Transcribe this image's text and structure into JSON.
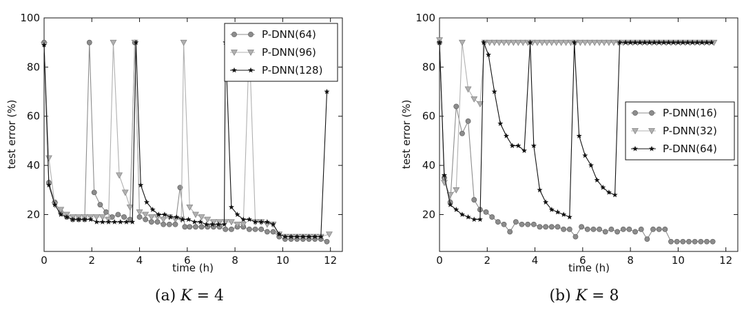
{
  "chart_data": [
    {
      "type": "line",
      "caption_prefix": "(a) ",
      "caption_var": "K",
      "caption_rest": " = 4",
      "xlabel": "time (h)",
      "ylabel": "test error (%)",
      "xlim": [
        0,
        12.5
      ],
      "ylim": [
        5,
        100
      ],
      "xticks": [
        0,
        2,
        4,
        6,
        8,
        10,
        12
      ],
      "yticks": [
        20,
        40,
        60,
        80,
        100
      ],
      "grid": false,
      "legend_position": "top-right",
      "series": [
        {
          "name": "P-DNN(64)",
          "color": "#8c8c8c",
          "marker": "circle",
          "x": [
            0,
            0.2,
            0.45,
            0.7,
            0.95,
            1.2,
            1.45,
            1.7,
            1.9,
            2.1,
            2.35,
            2.6,
            2.85,
            3.1,
            3.35,
            3.6,
            3.8,
            4.0,
            4.25,
            4.5,
            4.75,
            5.0,
            5.25,
            5.5,
            5.7,
            5.9,
            6.1,
            6.35,
            6.6,
            6.85,
            7.1,
            7.35,
            7.6,
            7.85,
            8.1,
            8.35,
            8.6,
            8.85,
            9.1,
            9.35,
            9.6,
            9.85,
            10.1,
            10.35,
            10.6,
            10.85,
            11.1,
            11.35,
            11.6,
            11.85
          ],
          "y": [
            90,
            33,
            25,
            21,
            19,
            18,
            18,
            18,
            90,
            29,
            24,
            21,
            19,
            20,
            19,
            18,
            90,
            19,
            18,
            17,
            17,
            16,
            16,
            16,
            31,
            15,
            15,
            15,
            15,
            15,
            15,
            15,
            14,
            14,
            15,
            15,
            14,
            14,
            14,
            13,
            13,
            11,
            10,
            10,
            10,
            10,
            10,
            10,
            10,
            9
          ]
        },
        {
          "name": "P-DNN(96)",
          "color": "#b0b0b0",
          "marker": "triangle-down",
          "x": [
            0,
            0.2,
            0.45,
            0.7,
            0.95,
            1.2,
            1.45,
            1.7,
            1.95,
            2.2,
            2.45,
            2.7,
            2.9,
            3.15,
            3.4,
            3.6,
            3.8,
            4.0,
            4.25,
            4.5,
            4.75,
            5.0,
            5.25,
            5.5,
            5.75,
            5.85,
            6.1,
            6.35,
            6.6,
            6.85,
            7.1,
            7.35,
            7.6,
            7.85,
            8.1,
            8.35,
            8.6,
            8.85,
            9.1,
            9.35,
            9.6,
            9.85,
            10.1,
            10.35,
            10.6,
            10.85,
            11.1,
            11.35,
            11.6,
            11.95
          ],
          "y": [
            89,
            43,
            24,
            22,
            20,
            19,
            19,
            19,
            19,
            19,
            19,
            18,
            90,
            36,
            29,
            23,
            90,
            21,
            20,
            19,
            19,
            18,
            19,
            18,
            18,
            90,
            23,
            20,
            19,
            18,
            17,
            17,
            17,
            17,
            16,
            16,
            90,
            17,
            17,
            16,
            16,
            12,
            11,
            11,
            11,
            11,
            11,
            11,
            11,
            12
          ]
        },
        {
          "name": "P-DNN(128)",
          "color": "#111111",
          "marker": "star",
          "x": [
            0,
            0.2,
            0.45,
            0.7,
            0.95,
            1.2,
            1.45,
            1.7,
            1.95,
            2.2,
            2.45,
            2.7,
            2.95,
            3.2,
            3.45,
            3.7,
            3.85,
            4.05,
            4.3,
            4.55,
            4.8,
            5.05,
            5.3,
            5.55,
            5.8,
            6.05,
            6.3,
            6.55,
            6.8,
            7.05,
            7.3,
            7.55,
            7.6,
            7.85,
            8.1,
            8.35,
            8.6,
            8.85,
            9.1,
            9.35,
            9.6,
            9.85,
            10.1,
            10.35,
            10.6,
            10.85,
            11.1,
            11.35,
            11.6,
            11.85
          ],
          "y": [
            89,
            32,
            24,
            20,
            19,
            18,
            18,
            18,
            18,
            17,
            17,
            17,
            17,
            17,
            17,
            17,
            90,
            32,
            25,
            22,
            20,
            20,
            19,
            19,
            18,
            18,
            17,
            17,
            16,
            16,
            16,
            16,
            90,
            23,
            20,
            18,
            18,
            17,
            17,
            17,
            16,
            12,
            11,
            11,
            11,
            11,
            11,
            11,
            11,
            70
          ]
        }
      ]
    },
    {
      "type": "line",
      "caption_prefix": "(b) ",
      "caption_var": "K",
      "caption_rest": " = 8",
      "xlabel": "time (h)",
      "ylabel": "test error (%)",
      "xlim": [
        0,
        12.5
      ],
      "ylim": [
        5,
        100
      ],
      "xticks": [
        0,
        2,
        4,
        6,
        8,
        10,
        12
      ],
      "yticks": [
        20,
        40,
        60,
        80,
        100
      ],
      "grid": false,
      "legend_position": "center-right",
      "series": [
        {
          "name": "P-DNN(16)",
          "color": "#8c8c8c",
          "marker": "circle",
          "x": [
            0,
            0.2,
            0.45,
            0.7,
            0.95,
            1.2,
            1.45,
            1.7,
            1.95,
            2.2,
            2.45,
            2.7,
            2.95,
            3.2,
            3.45,
            3.7,
            3.95,
            4.2,
            4.45,
            4.7,
            4.95,
            5.2,
            5.45,
            5.7,
            5.95,
            6.2,
            6.45,
            6.7,
            6.95,
            7.2,
            7.45,
            7.7,
            7.95,
            8.2,
            8.45,
            8.7,
            8.95,
            9.2,
            9.45,
            9.7,
            9.95,
            10.2,
            10.45,
            10.7,
            10.95,
            11.2,
            11.45
          ],
          "y": [
            90,
            35,
            25,
            64,
            53,
            58,
            26,
            22,
            21,
            19,
            17,
            16,
            13,
            17,
            16,
            16,
            16,
            15,
            15,
            15,
            15,
            14,
            14,
            11,
            15,
            14,
            14,
            14,
            13,
            14,
            13,
            14,
            14,
            13,
            14,
            10,
            14,
            14,
            14,
            9,
            9,
            9,
            9,
            9,
            9,
            9,
            9
          ]
        },
        {
          "name": "P-DNN(32)",
          "color": "#b0b0b0",
          "marker": "triangle-down",
          "x": [
            0,
            0.2,
            0.45,
            0.7,
            0.95,
            1.2,
            1.45,
            1.7,
            1.9,
            2.1,
            2.3,
            2.5,
            2.7,
            2.9,
            3.1,
            3.3,
            3.5,
            3.7,
            3.9,
            4.1,
            4.3,
            4.5,
            4.7,
            4.9,
            5.1,
            5.3,
            5.5,
            5.7,
            5.9,
            6.1,
            6.3,
            6.5,
            6.7,
            6.9,
            7.1,
            7.3,
            7.5,
            7.7,
            7.9,
            8.1,
            8.3,
            8.5,
            8.7,
            8.9,
            9.1,
            9.3,
            9.5,
            9.7,
            9.9,
            10.1,
            10.3,
            10.5,
            10.7,
            10.9,
            11.1,
            11.3,
            11.5
          ],
          "y": [
            91,
            33,
            28,
            30,
            90,
            71,
            67,
            65,
            90,
            90,
            90,
            90,
            90,
            90,
            90,
            90,
            90,
            90,
            90,
            90,
            90,
            90,
            90,
            90,
            90,
            90,
            90,
            90,
            90,
            90,
            90,
            90,
            90,
            90,
            90,
            90,
            90,
            90,
            90,
            90,
            90,
            90,
            90,
            90,
            90,
            90,
            90,
            90,
            90,
            90,
            90,
            90,
            90,
            90,
            90,
            90,
            90
          ]
        },
        {
          "name": "P-DNN(64)",
          "color": "#111111",
          "marker": "star",
          "x": [
            0,
            0.2,
            0.45,
            0.7,
            0.95,
            1.2,
            1.45,
            1.7,
            1.85,
            2.05,
            2.3,
            2.55,
            2.8,
            3.05,
            3.3,
            3.55,
            3.8,
            3.95,
            4.2,
            4.45,
            4.7,
            4.95,
            5.2,
            5.45,
            5.65,
            5.85,
            6.1,
            6.35,
            6.6,
            6.85,
            7.1,
            7.35,
            7.55,
            7.8,
            8.0,
            8.2,
            8.4,
            8.6,
            8.8,
            9.0,
            9.2,
            9.4,
            9.6,
            9.8,
            10.0,
            10.2,
            10.4,
            10.6,
            10.8,
            11.0,
            11.2,
            11.4
          ],
          "y": [
            90,
            36,
            24,
            22,
            20,
            19,
            18,
            18,
            90,
            85,
            70,
            57,
            52,
            48,
            48,
            46,
            90,
            48,
            30,
            25,
            22,
            21,
            20,
            19,
            90,
            52,
            44,
            40,
            34,
            31,
            29,
            28,
            90,
            90,
            90,
            90,
            90,
            90,
            90,
            90,
            90,
            90,
            90,
            90,
            90,
            90,
            90,
            90,
            90,
            90,
            90,
            90
          ]
        }
      ]
    }
  ]
}
